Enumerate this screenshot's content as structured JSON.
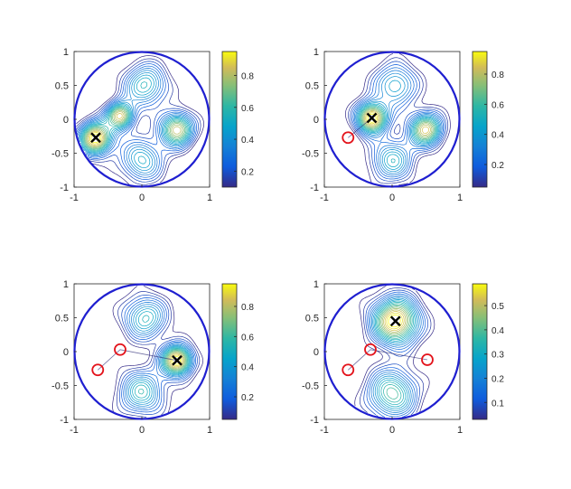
{
  "chart_data": [
    {
      "type": "contour",
      "axis": {
        "xlim": [
          -1,
          1
        ],
        "ylim": [
          -1,
          1
        ],
        "xticks": [
          "-1",
          "0",
          "1"
        ],
        "yticks": [
          "1",
          "0.5",
          "0",
          "-0.5",
          "-1"
        ]
      },
      "colorbar": {
        "range": [
          0.1,
          0.95
        ],
        "ticks": [
          "0.8",
          "0.6",
          "0.4",
          "0.2"
        ],
        "tick_values": [
          0.8,
          0.6,
          0.4,
          0.2
        ]
      },
      "blobs": [
        {
          "x": -0.68,
          "y": -0.28,
          "sigma": 0.17,
          "amp": 1.0
        },
        {
          "x": -0.32,
          "y": 0.05,
          "sigma": 0.14,
          "amp": 0.85
        },
        {
          "x": 0.52,
          "y": -0.15,
          "sigma": 0.17,
          "amp": 0.85
        },
        {
          "x": 0.05,
          "y": 0.5,
          "sigma": 0.22,
          "amp": 0.55
        },
        {
          "x": 0.0,
          "y": -0.6,
          "sigma": 0.22,
          "amp": 0.5
        }
      ],
      "cross_marker": {
        "x": -0.68,
        "y": -0.27
      },
      "circle_markers": [],
      "paths": []
    },
    {
      "type": "contour",
      "axis": {
        "xlim": [
          -1,
          1
        ],
        "ylim": [
          -1,
          1
        ],
        "xticks": [
          "-1",
          "0",
          "1"
        ],
        "yticks": [
          "1",
          "0.5",
          "0",
          "-0.5",
          "-1"
        ]
      },
      "colorbar": {
        "range": [
          0.05,
          0.95
        ],
        "ticks": [
          "0.8",
          "0.6",
          "0.4",
          "0.2"
        ],
        "tick_values": [
          0.8,
          0.6,
          0.4,
          0.2
        ]
      },
      "blobs": [
        {
          "x": -0.3,
          "y": 0.02,
          "sigma": 0.16,
          "amp": 1.0
        },
        {
          "x": 0.5,
          "y": -0.15,
          "sigma": 0.17,
          "amp": 0.85
        },
        {
          "x": 0.05,
          "y": 0.5,
          "sigma": 0.22,
          "amp": 0.5
        },
        {
          "x": 0.0,
          "y": -0.6,
          "sigma": 0.22,
          "amp": 0.5
        }
      ],
      "cross_marker": {
        "x": -0.3,
        "y": 0.02
      },
      "circle_markers": [
        {
          "x": -0.65,
          "y": -0.27
        }
      ],
      "paths": [
        [
          [
            -0.65,
            -0.27
          ],
          [
            -0.3,
            0.02
          ]
        ]
      ]
    },
    {
      "type": "contour",
      "axis": {
        "xlim": [
          -1,
          1
        ],
        "ylim": [
          -1,
          1
        ],
        "xticks": [
          "-1",
          "0",
          "1"
        ],
        "yticks": [
          "1",
          "0.5",
          "0",
          "-0.5",
          "-1"
        ]
      },
      "colorbar": {
        "range": [
          0.05,
          0.95
        ],
        "ticks": [
          "0.8",
          "0.6",
          "0.4",
          "0.2"
        ],
        "tick_values": [
          0.8,
          0.6,
          0.4,
          0.2
        ]
      },
      "blobs": [
        {
          "x": 0.52,
          "y": -0.13,
          "sigma": 0.16,
          "amp": 1.0
        },
        {
          "x": 0.05,
          "y": 0.5,
          "sigma": 0.22,
          "amp": 0.55
        },
        {
          "x": 0.0,
          "y": -0.6,
          "sigma": 0.23,
          "amp": 0.55
        }
      ],
      "cross_marker": {
        "x": 0.52,
        "y": -0.13
      },
      "circle_markers": [
        {
          "x": -0.65,
          "y": -0.27
        },
        {
          "x": -0.32,
          "y": 0.03
        }
      ],
      "paths": [
        [
          [
            -0.65,
            -0.27
          ],
          [
            -0.32,
            0.03
          ],
          [
            0.52,
            -0.13
          ]
        ]
      ]
    },
    {
      "type": "contour",
      "axis": {
        "xlim": [
          -1,
          1
        ],
        "ylim": [
          -1,
          1
        ],
        "xticks": [
          "-1",
          "0",
          "1"
        ],
        "yticks": [
          "1",
          "0.5",
          "0",
          "-0.5",
          "-1"
        ]
      },
      "colorbar": {
        "range": [
          0.03,
          0.59
        ],
        "ticks": [
          "0.5",
          "0.4",
          "0.3",
          "0.2",
          "0.1"
        ],
        "tick_values": [
          0.5,
          0.4,
          0.3,
          0.2,
          0.1
        ]
      },
      "blobs": [
        {
          "x": 0.05,
          "y": 0.45,
          "sigma": 0.24,
          "amp": 1.0
        },
        {
          "x": 0.0,
          "y": -0.62,
          "sigma": 0.25,
          "amp": 0.65
        }
      ],
      "cross_marker": {
        "x": 0.05,
        "y": 0.45
      },
      "circle_markers": [
        {
          "x": -0.65,
          "y": -0.27
        },
        {
          "x": -0.32,
          "y": 0.03
        },
        {
          "x": 0.52,
          "y": -0.12
        }
      ],
      "paths": [
        [
          [
            -0.65,
            -0.27
          ],
          [
            -0.32,
            0.03
          ],
          [
            0.52,
            -0.12
          ]
        ]
      ]
    }
  ]
}
